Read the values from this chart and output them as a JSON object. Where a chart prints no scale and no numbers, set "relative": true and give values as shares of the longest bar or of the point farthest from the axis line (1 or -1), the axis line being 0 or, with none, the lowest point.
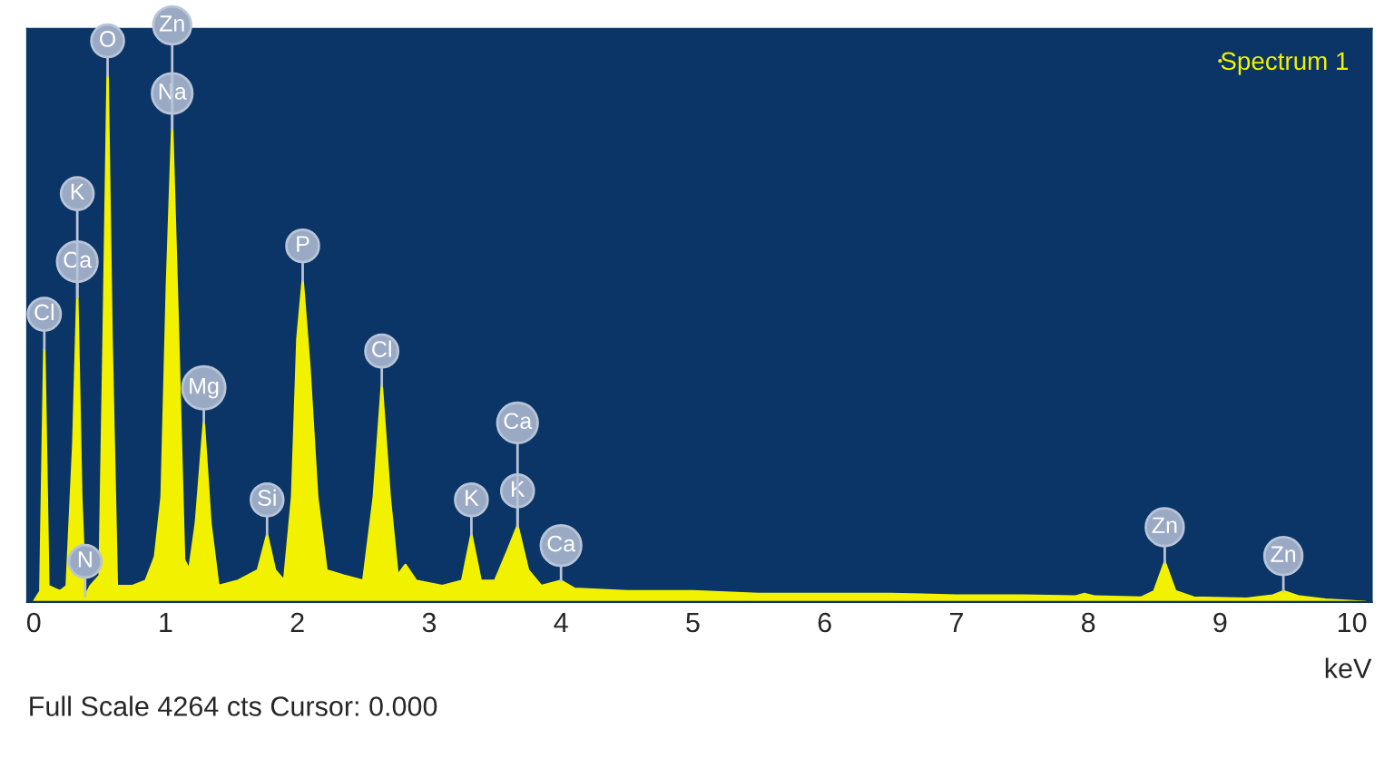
{
  "chart_data": {
    "type": "area",
    "relative": true,
    "xlabel": "keV",
    "x": [
      0.0,
      0.05,
      0.08,
      0.11,
      0.2,
      0.25,
      0.3,
      0.33,
      0.36,
      0.39,
      0.43,
      0.5,
      0.53,
      0.56,
      0.59,
      0.63,
      0.75,
      0.85,
      0.92,
      0.97,
      1.01,
      1.05,
      1.09,
      1.14,
      1.18,
      1.23,
      1.29,
      1.34,
      1.4,
      1.55,
      1.7,
      1.77,
      1.83,
      1.9,
      1.96,
      2.0,
      2.04,
      2.09,
      2.15,
      2.22,
      2.35,
      2.5,
      2.58,
      2.64,
      2.7,
      2.76,
      2.82,
      2.9,
      3.1,
      3.25,
      3.32,
      3.39,
      3.5,
      3.6,
      3.67,
      3.75,
      3.85,
      4.0,
      4.1,
      4.5,
      5.0,
      5.5,
      6.0,
      6.5,
      7.0,
      7.5,
      7.9,
      7.97,
      8.05,
      8.4,
      8.5,
      8.58,
      8.66,
      8.8,
      9.2,
      9.4,
      9.48,
      9.6,
      9.8,
      10.1
    ],
    "series": [
      {
        "name": "Spectrum 1",
        "color": "#f2f200",
        "values": [
          0.0,
          0.02,
          0.48,
          0.03,
          0.02,
          0.03,
          0.3,
          0.58,
          0.2,
          0.01,
          0.03,
          0.05,
          0.5,
          1.0,
          0.5,
          0.03,
          0.03,
          0.04,
          0.086,
          0.2,
          0.6,
          0.9,
          0.55,
          0.08,
          0.06,
          0.15,
          0.34,
          0.15,
          0.03,
          0.04,
          0.06,
          0.127,
          0.06,
          0.04,
          0.2,
          0.5,
          0.61,
          0.45,
          0.2,
          0.06,
          0.05,
          0.04,
          0.2,
          0.41,
          0.2,
          0.05,
          0.07,
          0.04,
          0.03,
          0.04,
          0.127,
          0.04,
          0.04,
          0.1,
          0.144,
          0.06,
          0.03,
          0.04,
          0.025,
          0.02,
          0.02,
          0.015,
          0.015,
          0.015,
          0.012,
          0.012,
          0.01,
          0.015,
          0.01,
          0.008,
          0.02,
          0.075,
          0.02,
          0.008,
          0.006,
          0.012,
          0.02,
          0.01,
          0.004,
          0.0
        ]
      }
    ],
    "xlim": [
      -0.05,
      10.15
    ],
    "xticks": [
      0,
      1,
      2,
      3,
      4,
      5,
      6,
      7,
      8,
      9,
      10
    ],
    "legend": "top right",
    "grid": false,
    "annotations": [
      {
        "text": "Cl",
        "x": 0.08,
        "y": 0.48
      },
      {
        "text": "Ca",
        "x": 0.33,
        "y": 0.58
      },
      {
        "text": "K",
        "x": 0.33,
        "y": 0.58
      },
      {
        "text": "N",
        "x": 0.39,
        "y": 0.01
      },
      {
        "text": "O",
        "x": 0.56,
        "y": 1.0
      },
      {
        "text": "Na",
        "x": 1.05,
        "y": 0.9
      },
      {
        "text": "Zn",
        "x": 1.05,
        "y": 0.9
      },
      {
        "text": "Mg",
        "x": 1.29,
        "y": 0.34
      },
      {
        "text": "Si",
        "x": 1.77,
        "y": 0.127
      },
      {
        "text": "P",
        "x": 2.04,
        "y": 0.61
      },
      {
        "text": "Cl",
        "x": 2.64,
        "y": 0.41
      },
      {
        "text": "K",
        "x": 3.32,
        "y": 0.127
      },
      {
        "text": "K",
        "x": 3.67,
        "y": 0.144
      },
      {
        "text": "Ca",
        "x": 3.67,
        "y": 0.144
      },
      {
        "text": "Ca",
        "x": 4.0,
        "y": 0.04
      },
      {
        "text": "Zn",
        "x": 8.58,
        "y": 0.075
      },
      {
        "text": "Zn",
        "x": 9.48,
        "y": 0.02
      },
      "Full Scale 4264 cts Cursor: 0.000"
    ]
  }
}
